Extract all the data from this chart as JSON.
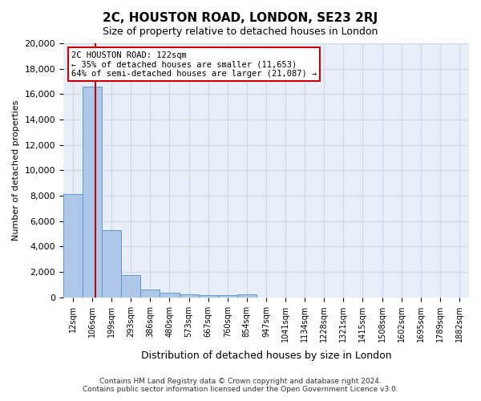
{
  "title": "2C, HOUSTON ROAD, LONDON, SE23 2RJ",
  "subtitle": "Size of property relative to detached houses in London",
  "xlabel": "Distribution of detached houses by size in London",
  "ylabel": "Number of detached properties",
  "bar_values": [
    8100,
    16600,
    5300,
    1750,
    600,
    330,
    200,
    170,
    150,
    200,
    0,
    0,
    0,
    0,
    0,
    0,
    0,
    0,
    0,
    0,
    0
  ],
  "bar_labels": [
    "12sqm",
    "106sqm",
    "199sqm",
    "293sqm",
    "386sqm",
    "480sqm",
    "573sqm",
    "667sqm",
    "760sqm",
    "854sqm",
    "947sqm",
    "1041sqm",
    "1134sqm",
    "1228sqm",
    "1321sqm",
    "1415sqm",
    "1508sqm",
    "1602sqm",
    "1695sqm",
    "1789sqm",
    "1882sqm"
  ],
  "bar_color": "#aec6e8",
  "bar_edge_color": "#5b9bd5",
  "annotation_title": "2C HOUSTON ROAD: 122sqm",
  "annotation_line1": "← 35% of detached houses are smaller (11,653)",
  "annotation_line2": "64% of semi-detached houses are larger (21,087) →",
  "annotation_box_color": "#ffffff",
  "annotation_border_color": "#cc0000",
  "vline_color": "#cc0000",
  "ylim": [
    0,
    20000
  ],
  "yticks": [
    0,
    2000,
    4000,
    6000,
    8000,
    10000,
    12000,
    14000,
    16000,
    18000,
    20000
  ],
  "grid_color": "#d0d8e8",
  "background_color": "#e8eef8",
  "footer_line1": "Contains HM Land Registry data © Crown copyright and database right 2024.",
  "footer_line2": "Contains public sector information licensed under the Open Government Licence v3.0."
}
